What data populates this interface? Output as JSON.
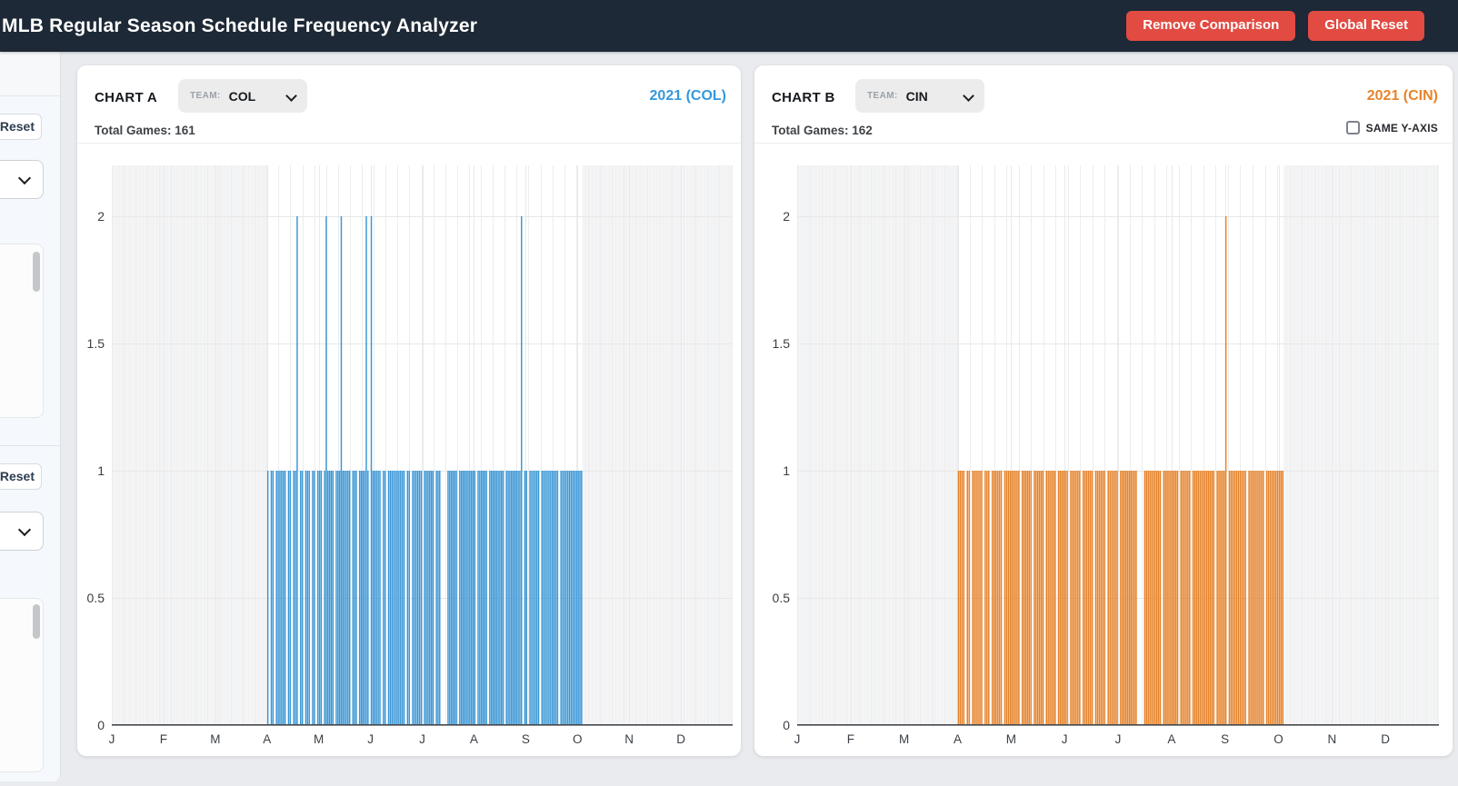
{
  "navbar": {
    "title": "MLB Regular Season Schedule Frequency Analyzer",
    "remove_comparison_label": "Remove Comparison",
    "global_reset_label": "Global Reset"
  },
  "sidebar": {
    "sections": [
      {
        "reset_label": "Reset"
      },
      {
        "reset_label": "Reset"
      }
    ]
  },
  "chart_data": [
    {
      "type": "bar",
      "chart_label": "CHART A",
      "team_label": "TEAM:",
      "team_selected": "COL",
      "team_options_visible": [
        "COL"
      ],
      "year_label": "2021 (COL)",
      "year_label_color": "#3598db",
      "total_games": 161,
      "total_games_label": "Total Games: 161",
      "bar_color": "#3a96d5",
      "x_tick_labels": [
        "J",
        "F",
        "M",
        "A",
        "M",
        "J",
        "J",
        "A",
        "S",
        "O",
        "N",
        "D"
      ],
      "y_ticks": [
        0,
        0.5,
        1,
        1.5,
        2
      ],
      "y_tick_labels": [
        "0",
        "0.5",
        "1",
        "1.5",
        "2"
      ],
      "ylim": [
        0,
        2.2
      ],
      "grid": true,
      "values_rule": "games per day: 1 on each scheduled day, 2 on doubleheader days, 0 on off days",
      "season_start": "04-01",
      "season_end": "10-03",
      "off_days": [
        "04-02",
        "04-05",
        "04-12",
        "04-15",
        "04-19",
        "04-22",
        "04-26",
        "04-29",
        "05-03",
        "05-10",
        "05-20",
        "05-24",
        "05-31",
        "06-07",
        "06-10",
        "06-21",
        "06-24",
        "07-01",
        "07-08",
        "07-12",
        "07-13",
        "07-14",
        "07-15",
        "07-22",
        "08-02",
        "08-09",
        "08-19",
        "08-30",
        "09-02",
        "09-09",
        "09-20"
      ],
      "doubleheader_days": [
        "04-18",
        "05-05",
        "05-14",
        "05-29",
        "06-01",
        "08-29"
      ]
    },
    {
      "type": "bar",
      "chart_label": "CHART B",
      "team_label": "TEAM:",
      "team_selected": "CIN",
      "team_options_visible": [
        "CIN"
      ],
      "year_label": "2021 (CIN)",
      "year_label_color": "#e8832a",
      "total_games": 162,
      "total_games_label": "Total Games: 162",
      "bar_color": "#e5832b",
      "same_y_axis": {
        "label": "SAME Y-AXIS",
        "checked": false
      },
      "x_tick_labels": [
        "J",
        "F",
        "M",
        "A",
        "M",
        "J",
        "J",
        "A",
        "S",
        "O",
        "N",
        "D"
      ],
      "y_ticks": [
        0,
        0.5,
        1,
        1.5,
        2
      ],
      "y_tick_labels": [
        "0",
        "0.5",
        "1",
        "1.5",
        "2"
      ],
      "ylim": [
        0,
        2.2
      ],
      "grid": true,
      "values_rule": "games per day: 1 on each scheduled day, 2 on doubleheader days, 0 on off days",
      "season_start": "04-01",
      "season_end": "10-03",
      "off_days": [
        "04-05",
        "04-08",
        "04-15",
        "04-19",
        "04-26",
        "05-06",
        "05-13",
        "05-20",
        "05-27",
        "06-03",
        "06-10",
        "06-17",
        "06-24",
        "07-01",
        "07-12",
        "07-13",
        "07-14",
        "07-15",
        "07-26",
        "08-05",
        "08-12",
        "08-26",
        "09-02",
        "09-13",
        "09-23"
      ],
      "doubleheader_days": [
        "09-01"
      ]
    }
  ]
}
